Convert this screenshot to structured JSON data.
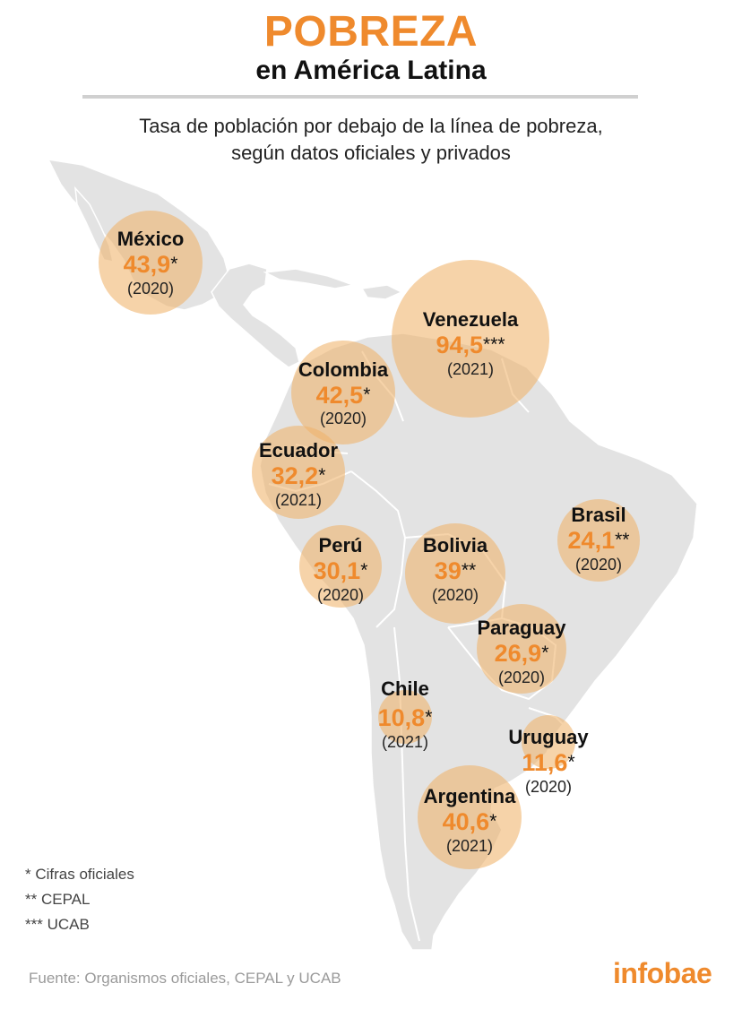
{
  "header": {
    "title": "POBREZA",
    "subtitle": "en América Latina",
    "description_line1": "Tasa de población por debajo de la línea de pobreza,",
    "description_line2": "según datos oficiales y privados"
  },
  "colors": {
    "accent": "#ef8a2d",
    "bubble": "#f0b36a",
    "land": "#e3e3e3"
  },
  "countries": [
    {
      "name": "México",
      "value": "43,9",
      "source_mark": "*",
      "year": "(2020)",
      "rate": 43.9
    },
    {
      "name": "Venezuela",
      "value": "94,5",
      "source_mark": "***",
      "year": "(2021)",
      "rate": 94.5
    },
    {
      "name": "Colombia",
      "value": "42,5",
      "source_mark": "*",
      "year": "(2020)",
      "rate": 42.5
    },
    {
      "name": "Ecuador",
      "value": "32,2",
      "source_mark": "*",
      "year": "(2021)",
      "rate": 32.2
    },
    {
      "name": "Brasil",
      "value": "24,1",
      "source_mark": "**",
      "year": "(2020)",
      "rate": 24.1
    },
    {
      "name": "Perú",
      "value": "30,1",
      "source_mark": "*",
      "year": "(2020)",
      "rate": 30.1
    },
    {
      "name": "Bolivia",
      "value": "39",
      "source_mark": "**",
      "year": "(2020)",
      "rate": 39
    },
    {
      "name": "Paraguay",
      "value": "26,9",
      "source_mark": "*",
      "year": "(2020)",
      "rate": 26.9
    },
    {
      "name": "Chile",
      "value": "10,8",
      "source_mark": "*",
      "year": "(2021)",
      "rate": 10.8
    },
    {
      "name": "Uruguay",
      "value": "11,6",
      "source_mark": "*",
      "year": "(2020)",
      "rate": 11.6
    },
    {
      "name": "Argentina",
      "value": "40,6",
      "source_mark": "*",
      "year": "(2021)",
      "rate": 40.6
    }
  ],
  "legend": {
    "official": "* Cifras oficiales",
    "cepal": "** CEPAL",
    "ucab": "*** UCAB"
  },
  "footer": {
    "source": "Fuente: Organismos oficiales, CEPAL y UCAB",
    "logo": "infobae"
  }
}
